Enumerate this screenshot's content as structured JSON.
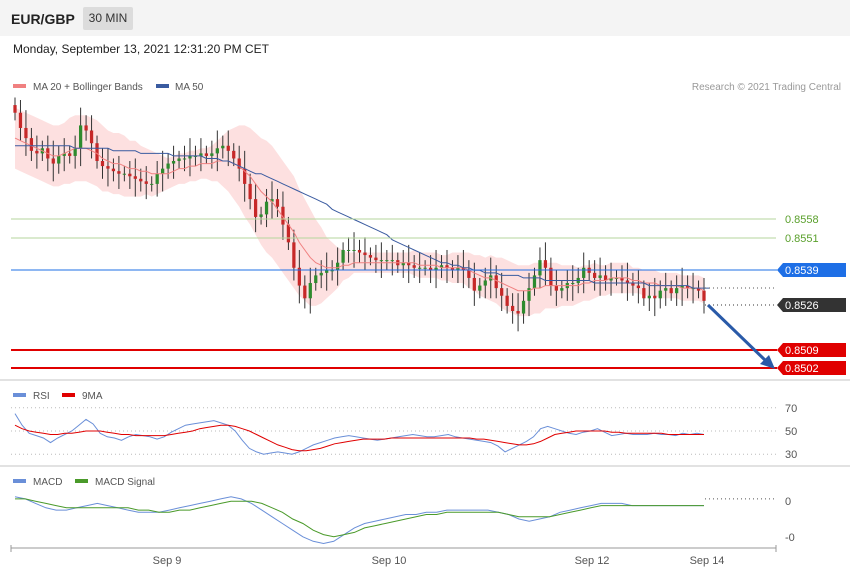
{
  "header": {
    "symbol": "EUR/GBP",
    "timeframe": "30 MIN"
  },
  "datetime": "Monday, September 13, 2021 12:31:20 PM CET",
  "credit": "Research © 2021 Trading Central",
  "colors": {
    "ma20": "#f08080",
    "bb_fill": "#fde0e0",
    "ma50": "#3a5ba0",
    "candle_up": "#2e8b2e",
    "candle_down": "#c62828",
    "fib_line": "#b5d69c",
    "fib_text": "#5aa02c",
    "pivot": "#1e6fe6",
    "support": "#e00000",
    "current": "#333333",
    "rsi": "#6a8fd8",
    "rsi_ma": "#e00000",
    "macd": "#6a8fd8",
    "macd_signal": "#4a9a2a",
    "arrow": "#2a5aa8"
  },
  "chart_data": [
    {
      "type": "candlestick",
      "panel": "price",
      "x_labels": [
        "Sep 9",
        "Sep 10",
        "Sep 12",
        "Sep 14"
      ],
      "legend": [
        "MA 20 + Bollinger Bands",
        "MA 50"
      ],
      "legend_position": "top-left",
      "levels": [
        {
          "value": 0.8558,
          "kind": "resistance"
        },
        {
          "value": 0.8551,
          "kind": "resistance"
        },
        {
          "value": 0.8539,
          "kind": "pivot"
        },
        {
          "value": 0.8526,
          "kind": "current"
        },
        {
          "value": 0.8509,
          "kind": "support"
        },
        {
          "value": 0.8502,
          "kind": "support"
        }
      ],
      "y_range": [
        0.8498,
        0.8605
      ],
      "closes": [
        0.86,
        0.8594,
        0.859,
        0.8585,
        0.8584,
        0.8586,
        0.8582,
        0.858,
        0.8583,
        0.8584,
        0.8583,
        0.8586,
        0.8595,
        0.8593,
        0.8588,
        0.8581,
        0.8579,
        0.8578,
        0.8577,
        0.8576,
        0.8576,
        0.8575,
        0.8574,
        0.8573,
        0.8572,
        0.8572,
        0.8576,
        0.8578,
        0.858,
        0.8581,
        0.8582,
        0.8582,
        0.8583,
        0.8583,
        0.8584,
        0.8583,
        0.8584,
        0.8586,
        0.8587,
        0.8585,
        0.8582,
        0.8578,
        0.8572,
        0.8566,
        0.8559,
        0.856,
        0.8565,
        0.8566,
        0.8563,
        0.8556,
        0.8549,
        0.8539,
        0.8532,
        0.8527,
        0.8533,
        0.8536,
        0.8537,
        0.8538,
        0.8538,
        0.8541,
        0.8546,
        0.8546,
        0.8546,
        0.8545,
        0.8544,
        0.8543,
        0.8542,
        0.8542,
        0.8542,
        0.8542,
        0.854,
        0.8541,
        0.854,
        0.8539,
        0.8539,
        0.8539,
        0.8538,
        0.8539,
        0.854,
        0.8539,
        0.8538,
        0.8539,
        0.8538,
        0.8535,
        0.853,
        0.8532,
        0.8534,
        0.8536,
        0.8531,
        0.8528,
        0.8524,
        0.8522,
        0.8521,
        0.8526,
        0.8531,
        0.8536,
        0.8542,
        0.8539,
        0.8532,
        0.853,
        0.8531,
        0.8533,
        0.8533,
        0.8535,
        0.8539,
        0.8537,
        0.8535,
        0.8536,
        0.8534,
        0.8535,
        0.8535,
        0.8534,
        0.8533,
        0.8532,
        0.8531,
        0.8527,
        0.8528,
        0.8527,
        0.853,
        0.8531,
        0.8529,
        0.8531,
        0.8532,
        0.8531,
        0.8531,
        0.853,
        0.8526
      ],
      "ma20": [
        0.859,
        0.8589,
        0.8588,
        0.8587,
        0.8586,
        0.8585,
        0.8584,
        0.8583,
        0.8583,
        0.8584,
        0.8585,
        0.8586,
        0.8586,
        0.8586,
        0.8585,
        0.8584,
        0.8582,
        0.8581,
        0.858,
        0.858,
        0.8579,
        0.8578,
        0.8578,
        0.8577,
        0.8577,
        0.8576,
        0.8576,
        0.8576,
        0.8576,
        0.8577,
        0.8578,
        0.8578,
        0.8579,
        0.8579,
        0.858,
        0.858,
        0.858,
        0.8581,
        0.8581,
        0.8581,
        0.858,
        0.8579,
        0.8577,
        0.8575,
        0.8572,
        0.8569,
        0.8567,
        0.8565,
        0.8562,
        0.8559,
        0.8556,
        0.8553,
        0.8549,
        0.8546,
        0.8543,
        0.8541,
        0.854,
        0.8539,
        0.8539,
        0.8539,
        0.854,
        0.854,
        0.8541,
        0.8541,
        0.8541,
        0.8541,
        0.8541,
        0.8541,
        0.8541,
        0.8541,
        0.8541,
        0.8541,
        0.8541,
        0.8541,
        0.854,
        0.854,
        0.854,
        0.854,
        0.8539,
        0.8539,
        0.8539,
        0.8539,
        0.8539,
        0.8538,
        0.8537,
        0.8536,
        0.8535,
        0.8535,
        0.8534,
        0.8533,
        0.8532,
        0.8531,
        0.853,
        0.853,
        0.853,
        0.8531,
        0.8531,
        0.8532,
        0.8532,
        0.8532,
        0.8532,
        0.8532,
        0.8532,
        0.8532,
        0.8533,
        0.8533,
        0.8534,
        0.8534,
        0.8534,
        0.8535,
        0.8535,
        0.8535,
        0.8535,
        0.8534,
        0.8534,
        0.8533,
        0.8533,
        0.8533,
        0.8532,
        0.8532,
        0.8532,
        0.8532,
        0.8531,
        0.8531,
        0.8531,
        0.8531,
        0.853
      ],
      "bb_width": [
        0.0012,
        0.0012,
        0.0012,
        0.0012,
        0.0012,
        0.0012,
        0.0012,
        0.0012,
        0.0012,
        0.0012,
        0.0013,
        0.0013,
        0.0013,
        0.0013,
        0.0013,
        0.0013,
        0.0013,
        0.0012,
        0.0012,
        0.0012,
        0.0012,
        0.0011,
        0.0011,
        0.001,
        0.0009,
        0.0009,
        0.0008,
        0.0007,
        0.0006,
        0.0006,
        0.0006,
        0.0006,
        0.0006,
        0.0006,
        0.0006,
        0.0006,
        0.0007,
        0.0008,
        0.001,
        0.0012,
        0.0014,
        0.0016,
        0.0018,
        0.0019,
        0.002,
        0.0021,
        0.0022,
        0.0022,
        0.0022,
        0.0022,
        0.0022,
        0.0022,
        0.0021,
        0.002,
        0.0019,
        0.0017,
        0.0015,
        0.0012,
        0.001,
        0.0008,
        0.0006,
        0.0005,
        0.0004,
        0.0004,
        0.0004,
        0.0004,
        0.0004,
        0.0004,
        0.0004,
        0.0004,
        0.0004,
        0.0004,
        0.0004,
        0.0005,
        0.0005,
        0.0005,
        0.0005,
        0.0005,
        0.0005,
        0.0005,
        0.0006,
        0.0006,
        0.0006,
        0.0007,
        0.0007,
        0.0008,
        0.0008,
        0.0009,
        0.0009,
        0.001,
        0.001,
        0.001,
        0.001,
        0.001,
        0.001,
        0.001,
        0.001,
        0.0009,
        0.0009,
        0.0009,
        0.0008,
        0.0008,
        0.0008,
        0.0007,
        0.0007,
        0.0007,
        0.0007,
        0.0006,
        0.0006,
        0.0006,
        0.0006,
        0.0006,
        0.0006,
        0.0005,
        0.0005,
        0.0005,
        0.0005,
        0.0005,
        0.0005,
        0.0005,
        0.0005,
        0.0005,
        0.0005,
        0.0005,
        0.0005,
        0.0005,
        0.0005
      ],
      "ma50": [
        0.8587,
        0.8587,
        0.8587,
        0.8587,
        0.8587,
        0.8587,
        0.8587,
        0.8587,
        0.8587,
        0.8587,
        0.8587,
        0.8586,
        0.8586,
        0.8586,
        0.8586,
        0.8586,
        0.8586,
        0.8586,
        0.8585,
        0.8585,
        0.8585,
        0.8585,
        0.8585,
        0.8584,
        0.8584,
        0.8584,
        0.8584,
        0.8584,
        0.8584,
        0.8583,
        0.8583,
        0.8583,
        0.8583,
        0.8583,
        0.8583,
        0.8582,
        0.8582,
        0.8582,
        0.8581,
        0.8581,
        0.858,
        0.8579,
        0.8578,
        0.8577,
        0.8576,
        0.8576,
        0.8575,
        0.8574,
        0.8573,
        0.8572,
        0.8571,
        0.857,
        0.8569,
        0.8568,
        0.8567,
        0.8566,
        0.8565,
        0.8564,
        0.8562,
        0.8561,
        0.856,
        0.8559,
        0.8558,
        0.8557,
        0.8556,
        0.8555,
        0.8554,
        0.8553,
        0.8552,
        0.855,
        0.8549,
        0.8548,
        0.8547,
        0.8546,
        0.8545,
        0.8544,
        0.8543,
        0.8542,
        0.8541,
        0.8541,
        0.854,
        0.854,
        0.8539,
        0.8539,
        0.8538,
        0.8538,
        0.8537,
        0.8537,
        0.8537,
        0.8536,
        0.8536,
        0.8536,
        0.8536,
        0.8535,
        0.8535,
        0.8535,
        0.8535,
        0.8534,
        0.8534,
        0.8534,
        0.8534,
        0.8534,
        0.8534,
        0.8534,
        0.8534,
        0.8534,
        0.8533,
        0.8533,
        0.8533,
        0.8533,
        0.8533,
        0.8533,
        0.8533,
        0.8533,
        0.8533,
        0.8533,
        0.8532,
        0.8532,
        0.8532,
        0.8532,
        0.8532,
        0.8532,
        0.8532,
        0.8532,
        0.8531,
        0.8531,
        0.8531,
        0.8531
      ]
    },
    {
      "type": "line",
      "panel": "rsi",
      "legend": [
        "RSI",
        "9MA"
      ],
      "y_ticks": [
        70,
        50,
        30
      ],
      "y_range": [
        25,
        75
      ],
      "series": [
        {
          "name": "RSI",
          "values": [
            65,
            55,
            48,
            46,
            44,
            40,
            44,
            47,
            50,
            55,
            60,
            56,
            48,
            45,
            44,
            42,
            45,
            47,
            46,
            45,
            43,
            45,
            49,
            52,
            55,
            56,
            57,
            58,
            59,
            57,
            55,
            50,
            42,
            35,
            32,
            30,
            31,
            32,
            31,
            30,
            32,
            35,
            38,
            40,
            42,
            44,
            45,
            46,
            45,
            44,
            43,
            42,
            43,
            44,
            45,
            46,
            47,
            46,
            45,
            45,
            46,
            47,
            45,
            44,
            43,
            42,
            41,
            40,
            37,
            32,
            35,
            38,
            41,
            45,
            52,
            54,
            52,
            50,
            48,
            47,
            49,
            50,
            52,
            49,
            46,
            47,
            48,
            47,
            47,
            47,
            48,
            47,
            47,
            46,
            48,
            47,
            48,
            47
          ]
        },
        {
          "name": "9MA",
          "values": [
            55,
            52,
            50,
            49,
            48,
            47,
            47,
            48,
            48,
            49,
            50,
            50,
            50,
            49,
            48,
            47,
            47,
            46,
            46,
            46,
            46,
            46,
            47,
            48,
            49,
            50,
            52,
            53,
            54,
            55,
            55,
            54,
            52,
            50,
            47,
            44,
            41,
            38,
            36,
            34,
            33,
            33,
            34,
            35,
            37,
            39,
            40,
            41,
            42,
            43,
            43,
            43,
            43,
            44,
            44,
            44,
            44,
            44,
            44,
            44,
            44,
            44,
            44,
            44,
            44,
            43,
            43,
            42,
            41,
            40,
            39,
            38,
            38,
            39,
            41,
            44,
            47,
            48,
            49,
            50,
            50,
            50,
            50,
            50,
            49,
            49,
            48,
            48,
            48,
            48,
            48,
            48,
            47,
            47,
            47,
            47,
            47,
            47
          ]
        }
      ]
    },
    {
      "type": "line",
      "panel": "macd",
      "legend": [
        "MACD",
        "MACD Signal"
      ],
      "y_ticks": [
        "0",
        "-0"
      ],
      "y_range": [
        -0.0022,
        0.0004
      ],
      "series": [
        {
          "name": "MACD",
          "values": [
            0.0001,
            0.0,
            -0.0002,
            -0.0004,
            -0.0005,
            -0.0005,
            -0.0004,
            -0.0003,
            -0.0002,
            -0.0003,
            -0.0004,
            -0.0005,
            -0.0006,
            -0.0006,
            -0.0006,
            -0.0005,
            -0.0004,
            -0.0003,
            -0.0002,
            -0.0001,
            0.0,
            0.0001,
            0.0,
            -0.0002,
            -0.0005,
            -0.0008,
            -0.0011,
            -0.0014,
            -0.0017,
            -0.0019,
            -0.002,
            -0.0019,
            -0.0016,
            -0.0013,
            -0.0011,
            -0.001,
            -0.0009,
            -0.0008,
            -0.0007,
            -0.0007,
            -0.0006,
            -0.0006,
            -0.0005,
            -0.0005,
            -0.0005,
            -0.0005,
            -0.0005,
            -0.0006,
            -0.0007,
            -0.0009,
            -0.001,
            -0.0009,
            -0.0008,
            -0.0006,
            -0.0005,
            -0.0004,
            -0.0003,
            -0.0002,
            -0.0002,
            -0.0002,
            -0.0003,
            -0.0003,
            -0.0003,
            -0.0003,
            -0.0003,
            -0.0003,
            -0.0003,
            -0.0003
          ]
        },
        {
          "name": "MACD Signal",
          "values": [
            0.0,
            0.0,
            -0.0001,
            -0.0002,
            -0.0003,
            -0.0004,
            -0.0004,
            -0.0004,
            -0.0004,
            -0.0004,
            -0.0004,
            -0.0004,
            -0.0005,
            -0.0005,
            -0.0006,
            -0.0006,
            -0.0005,
            -0.0005,
            -0.0004,
            -0.0003,
            -0.0002,
            -0.0001,
            -0.0001,
            -0.0001,
            -0.0002,
            -0.0004,
            -0.0006,
            -0.0009,
            -0.0011,
            -0.0014,
            -0.0016,
            -0.0017,
            -0.0016,
            -0.0015,
            -0.0013,
            -0.0012,
            -0.0011,
            -0.001,
            -0.0009,
            -0.0008,
            -0.0007,
            -0.0007,
            -0.0006,
            -0.0006,
            -0.0006,
            -0.0006,
            -0.0006,
            -0.0006,
            -0.0007,
            -0.0008,
            -0.0008,
            -0.0008,
            -0.0008,
            -0.0007,
            -0.0006,
            -0.0005,
            -0.0004,
            -0.0003,
            -0.0003,
            -0.0003,
            -0.0003,
            -0.0003,
            -0.0003,
            -0.0003,
            -0.0003,
            -0.0003,
            -0.0003,
            -0.0003
          ]
        }
      ]
    }
  ]
}
